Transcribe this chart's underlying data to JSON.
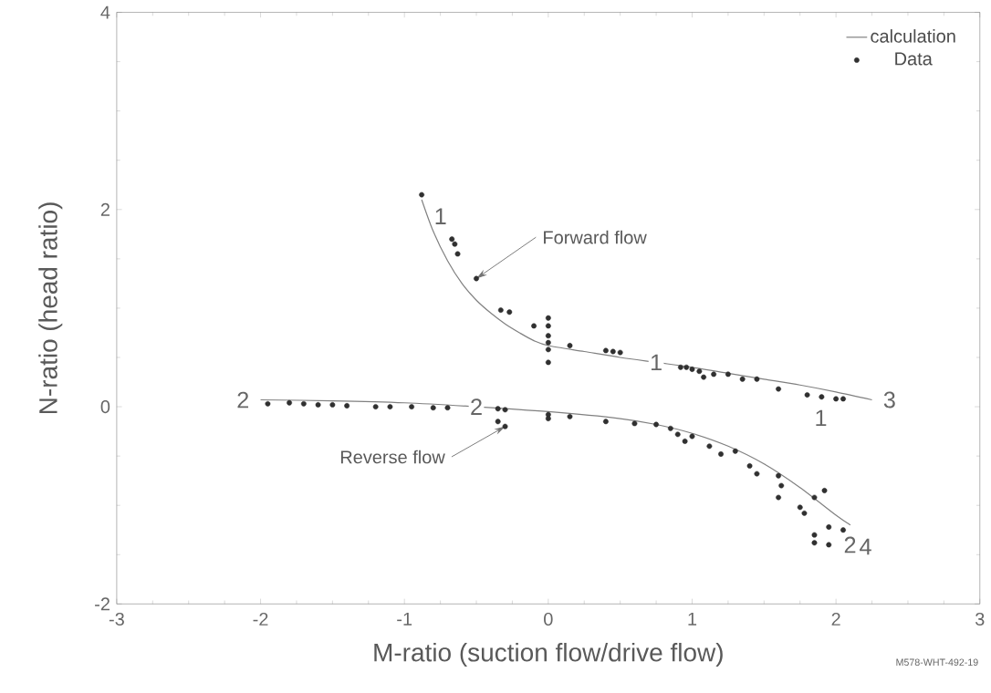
{
  "chart_data": {
    "type": "scatter",
    "xlabel": "M-ratio (suction flow/drive flow)",
    "ylabel": "N-ratio (head ratio)",
    "xlim": [
      -3,
      3
    ],
    "ylim": [
      -2,
      4
    ],
    "xticks": [
      -3,
      -2,
      -1,
      0,
      1,
      2,
      3
    ],
    "yticks": [
      -2,
      0,
      2,
      4
    ],
    "legend": "top right",
    "grid": false,
    "series": [
      {
        "name": "calculation",
        "type": "line",
        "color": "#808080",
        "x": [
          -0.88,
          -0.8,
          -0.7,
          -0.6,
          -0.5,
          -0.4,
          -0.3,
          -0.2,
          -0.1,
          0,
          0.25,
          0.5,
          0.75,
          1,
          1.25,
          1.5,
          1.75,
          2,
          2.25
        ],
        "values": [
          2.1,
          1.78,
          1.48,
          1.25,
          1.08,
          0.95,
          0.84,
          0.75,
          0.67,
          0.62,
          0.56,
          0.5,
          0.45,
          0.4,
          0.34,
          0.28,
          0.22,
          0.15,
          0.07
        ]
      },
      {
        "type": "line",
        "color": "#808080",
        "x": [
          -2,
          -1.5,
          -1,
          -0.5,
          0,
          0.5,
          0.75,
          1,
          1.25,
          1.5,
          1.75,
          2,
          2.1
        ],
        "values": [
          0.07,
          0.06,
          0.04,
          0.0,
          -0.05,
          -0.12,
          -0.18,
          -0.27,
          -0.4,
          -0.58,
          -0.82,
          -1.1,
          -1.2
        ]
      },
      {
        "name": "Data",
        "color": "#303030",
        "x": [
          -0.88,
          -0.67,
          -0.65,
          -0.63,
          -0.5,
          -0.33,
          -0.27,
          -0.1,
          0,
          0,
          0,
          0,
          0,
          0,
          0.15,
          0.4,
          0.45,
          0.5,
          0.92,
          0.96,
          1.0,
          1.05,
          1.08,
          1.15,
          1.25,
          1.35,
          1.45,
          1.6,
          1.8,
          1.9,
          2.0,
          2.05,
          -1.95,
          -1.8,
          -1.7,
          -1.6,
          -1.5,
          -1.4,
          -1.2,
          -1.1,
          -0.95,
          -0.8,
          -0.7,
          -0.35,
          -0.3,
          -0.35,
          -0.3,
          0,
          0,
          0.15,
          0.4,
          0.6,
          0.75,
          0.85,
          0.9,
          0.95,
          1.0,
          1.12,
          1.2,
          1.3,
          1.4,
          1.45,
          1.6,
          1.62,
          1.6,
          1.75,
          1.78,
          1.85,
          1.92,
          1.85,
          1.85,
          1.95,
          2.05,
          1.95
        ],
        "values": [
          2.15,
          1.7,
          1.65,
          1.55,
          1.3,
          0.98,
          0.96,
          0.82,
          0.9,
          0.82,
          0.72,
          0.65,
          0.58,
          0.45,
          0.62,
          0.57,
          0.56,
          0.55,
          0.4,
          0.4,
          0.38,
          0.36,
          0.3,
          0.33,
          0.33,
          0.28,
          0.28,
          0.18,
          0.12,
          0.1,
          0.08,
          0.08,
          0.03,
          0.04,
          0.03,
          0.02,
          0.02,
          0.01,
          0.0,
          0.0,
          0.0,
          -0.01,
          -0.01,
          -0.02,
          -0.03,
          -0.15,
          -0.2,
          -0.08,
          -0.12,
          -0.1,
          -0.15,
          -0.17,
          -0.18,
          -0.22,
          -0.28,
          -0.35,
          -0.3,
          -0.4,
          -0.48,
          -0.45,
          -0.6,
          -0.68,
          -0.7,
          -0.8,
          -0.92,
          -1.02,
          -1.08,
          -0.92,
          -0.85,
          -1.3,
          -1.38,
          -1.4,
          -1.25,
          -1.22
        ]
      }
    ],
    "annotations": [
      {
        "text": "1",
        "x": -0.88,
        "y": 2.1
      },
      {
        "text": "1",
        "x": 0.75,
        "y": 0.45
      },
      {
        "text": "1",
        "x": 2.0,
        "y": 0.08
      },
      {
        "text": "3",
        "x": 2.25,
        "y": 0.07
      },
      {
        "text": "2",
        "x": -2,
        "y": 0.07
      },
      {
        "text": "2",
        "x": -0.5,
        "y": 0.0
      },
      {
        "text": "2",
        "x": 1.95,
        "y": -1.4
      },
      {
        "text": "4",
        "x": 2.1,
        "y": -1.2
      },
      {
        "text": "Forward flow",
        "x": -0.5,
        "y": 1.3
      },
      {
        "text": "Reverse flow",
        "x": -0.3,
        "y": -0.2
      },
      "M578-WHT-492-19"
    ]
  }
}
